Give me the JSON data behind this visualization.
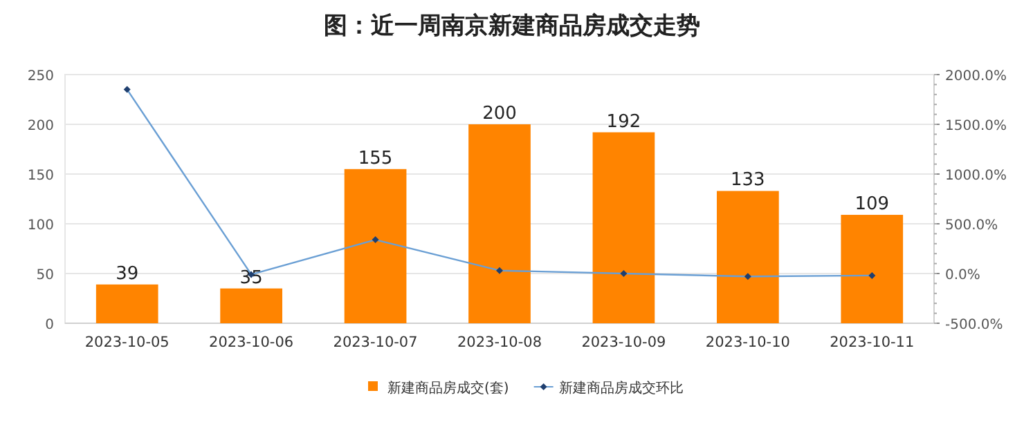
{
  "chart_data": {
    "type": "bar",
    "title": "图：近一周南京新建商品房成交走势",
    "categories": [
      "2023-10-05",
      "2023-10-06",
      "2023-10-07",
      "2023-10-08",
      "2023-10-09",
      "2023-10-10",
      "2023-10-11"
    ],
    "series": [
      {
        "name": "新建商品房成交(套)",
        "color": "#ff8400",
        "values": [
          39,
          35,
          155,
          200,
          192,
          133,
          109
        ],
        "value_labels": [
          "39",
          "35",
          "155",
          "200",
          "192",
          "133",
          "109"
        ]
      },
      {
        "name": "新建商品房成交环比",
        "type": "line",
        "axis": "y2",
        "color": "#6a9fd4",
        "marker": "diamond",
        "values": [
          1850,
          -10,
          340,
          30,
          0,
          -30,
          -20
        ]
      }
    ],
    "ylim": [
      0,
      250
    ],
    "yticks": [
      0,
      50,
      100,
      150,
      200,
      250
    ],
    "y2lim": [
      -500,
      2000
    ],
    "y2ticks": [
      {
        "value": -500,
        "label": "-500.0%"
      },
      {
        "value": 0,
        "label": "0.0%"
      },
      {
        "value": 500,
        "label": "500.0%"
      },
      {
        "value": 1000,
        "label": "1000.0%"
      },
      {
        "value": 1500,
        "label": "1500.0%"
      },
      {
        "value": 2000,
        "label": "2000.0%"
      }
    ],
    "grid": "y",
    "legend": "bottom"
  }
}
